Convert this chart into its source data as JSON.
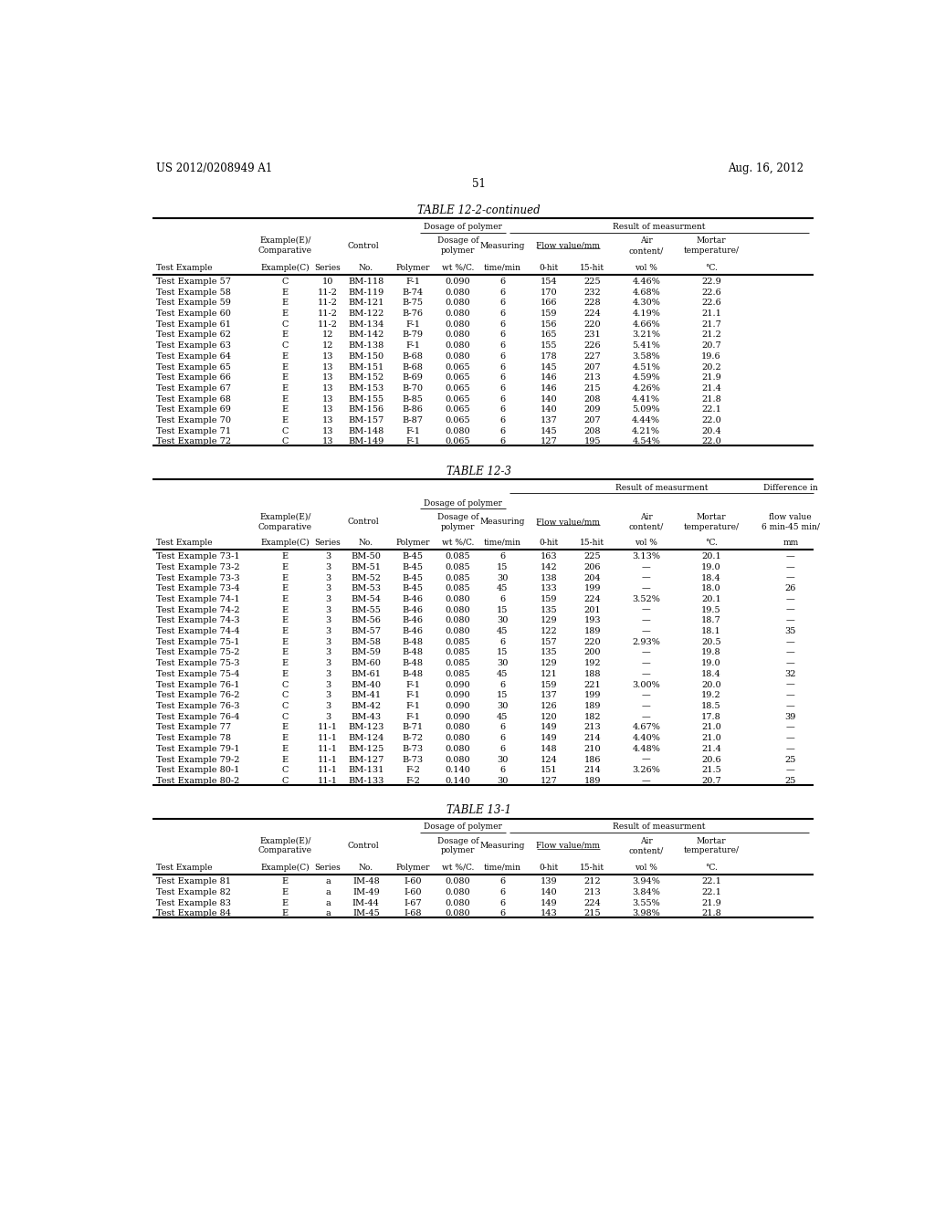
{
  "patent_number": "US 2012/0208949 A1",
  "patent_date": "Aug. 16, 2012",
  "page_number": "51",
  "table1_title": "TABLE 12-2-continued",
  "table1_data": [
    [
      "Test Example 57",
      "C",
      "10",
      "BM-118",
      "F-1",
      "0.090",
      "6",
      "154",
      "225",
      "4.46%",
      "22.9"
    ],
    [
      "Test Example 58",
      "E",
      "11-2",
      "BM-119",
      "B-74",
      "0.080",
      "6",
      "170",
      "232",
      "4.68%",
      "22.6"
    ],
    [
      "Test Example 59",
      "E",
      "11-2",
      "BM-121",
      "B-75",
      "0.080",
      "6",
      "166",
      "228",
      "4.30%",
      "22.6"
    ],
    [
      "Test Example 60",
      "E",
      "11-2",
      "BM-122",
      "B-76",
      "0.080",
      "6",
      "159",
      "224",
      "4.19%",
      "21.1"
    ],
    [
      "Test Example 61",
      "C",
      "11-2",
      "BM-134",
      "F-1",
      "0.080",
      "6",
      "156",
      "220",
      "4.66%",
      "21.7"
    ],
    [
      "Test Example 62",
      "E",
      "12",
      "BM-142",
      "B-79",
      "0.080",
      "6",
      "165",
      "231",
      "3.21%",
      "21.2"
    ],
    [
      "Test Example 63",
      "C",
      "12",
      "BM-138",
      "F-1",
      "0.080",
      "6",
      "155",
      "226",
      "5.41%",
      "20.7"
    ],
    [
      "Test Example 64",
      "E",
      "13",
      "BM-150",
      "B-68",
      "0.080",
      "6",
      "178",
      "227",
      "3.58%",
      "19.6"
    ],
    [
      "Test Example 65",
      "E",
      "13",
      "BM-151",
      "B-68",
      "0.065",
      "6",
      "145",
      "207",
      "4.51%",
      "20.2"
    ],
    [
      "Test Example 66",
      "E",
      "13",
      "BM-152",
      "B-69",
      "0.065",
      "6",
      "146",
      "213",
      "4.59%",
      "21.9"
    ],
    [
      "Test Example 67",
      "E",
      "13",
      "BM-153",
      "B-70",
      "0.065",
      "6",
      "146",
      "215",
      "4.26%",
      "21.4"
    ],
    [
      "Test Example 68",
      "E",
      "13",
      "BM-155",
      "B-85",
      "0.065",
      "6",
      "140",
      "208",
      "4.41%",
      "21.8"
    ],
    [
      "Test Example 69",
      "E",
      "13",
      "BM-156",
      "B-86",
      "0.065",
      "6",
      "140",
      "209",
      "5.09%",
      "22.1"
    ],
    [
      "Test Example 70",
      "E",
      "13",
      "BM-157",
      "B-87",
      "0.065",
      "6",
      "137",
      "207",
      "4.44%",
      "22.0"
    ],
    [
      "Test Example 71",
      "C",
      "13",
      "BM-148",
      "F-1",
      "0.080",
      "6",
      "145",
      "208",
      "4.21%",
      "20.4"
    ],
    [
      "Test Example 72",
      "C",
      "13",
      "BM-149",
      "F-1",
      "0.065",
      "6",
      "127",
      "195",
      "4.54%",
      "22.0"
    ]
  ],
  "table2_title": "TABLE 12-3",
  "table2_data": [
    [
      "Test Example 73-1",
      "E",
      "3",
      "BM-50",
      "B-45",
      "0.085",
      "6",
      "163",
      "225",
      "3.13%",
      "20.1",
      "—"
    ],
    [
      "Test Example 73-2",
      "E",
      "3",
      "BM-51",
      "B-45",
      "0.085",
      "15",
      "142",
      "206",
      "—",
      "19.0",
      "—"
    ],
    [
      "Test Example 73-3",
      "E",
      "3",
      "BM-52",
      "B-45",
      "0.085",
      "30",
      "138",
      "204",
      "—",
      "18.4",
      "—"
    ],
    [
      "Test Example 73-4",
      "E",
      "3",
      "BM-53",
      "B-45",
      "0.085",
      "45",
      "133",
      "199",
      "—",
      "18.0",
      "26"
    ],
    [
      "Test Example 74-1",
      "E",
      "3",
      "BM-54",
      "B-46",
      "0.080",
      "6",
      "159",
      "224",
      "3.52%",
      "20.1",
      "—"
    ],
    [
      "Test Example 74-2",
      "E",
      "3",
      "BM-55",
      "B-46",
      "0.080",
      "15",
      "135",
      "201",
      "—",
      "19.5",
      "—"
    ],
    [
      "Test Example 74-3",
      "E",
      "3",
      "BM-56",
      "B-46",
      "0.080",
      "30",
      "129",
      "193",
      "—",
      "18.7",
      "—"
    ],
    [
      "Test Example 74-4",
      "E",
      "3",
      "BM-57",
      "B-46",
      "0.080",
      "45",
      "122",
      "189",
      "—",
      "18.1",
      "35"
    ],
    [
      "Test Example 75-1",
      "E",
      "3",
      "BM-58",
      "B-48",
      "0.085",
      "6",
      "157",
      "220",
      "2.93%",
      "20.5",
      "—"
    ],
    [
      "Test Example 75-2",
      "E",
      "3",
      "BM-59",
      "B-48",
      "0.085",
      "15",
      "135",
      "200",
      "—",
      "19.8",
      "—"
    ],
    [
      "Test Example 75-3",
      "E",
      "3",
      "BM-60",
      "B-48",
      "0.085",
      "30",
      "129",
      "192",
      "—",
      "19.0",
      "—"
    ],
    [
      "Test Example 75-4",
      "E",
      "3",
      "BM-61",
      "B-48",
      "0.085",
      "45",
      "121",
      "188",
      "—",
      "18.4",
      "32"
    ],
    [
      "Test Example 76-1",
      "C",
      "3",
      "BM-40",
      "F-1",
      "0.090",
      "6",
      "159",
      "221",
      "3.00%",
      "20.0",
      "—"
    ],
    [
      "Test Example 76-2",
      "C",
      "3",
      "BM-41",
      "F-1",
      "0.090",
      "15",
      "137",
      "199",
      "—",
      "19.2",
      "—"
    ],
    [
      "Test Example 76-3",
      "C",
      "3",
      "BM-42",
      "F-1",
      "0.090",
      "30",
      "126",
      "189",
      "—",
      "18.5",
      "—"
    ],
    [
      "Test Example 76-4",
      "C",
      "3",
      "BM-43",
      "F-1",
      "0.090",
      "45",
      "120",
      "182",
      "—",
      "17.8",
      "39"
    ],
    [
      "Test Example 77",
      "E",
      "11-1",
      "BM-123",
      "B-71",
      "0.080",
      "6",
      "149",
      "213",
      "4.67%",
      "21.0",
      "—"
    ],
    [
      "Test Example 78",
      "E",
      "11-1",
      "BM-124",
      "B-72",
      "0.080",
      "6",
      "149",
      "214",
      "4.40%",
      "21.0",
      "—"
    ],
    [
      "Test Example 79-1",
      "E",
      "11-1",
      "BM-125",
      "B-73",
      "0.080",
      "6",
      "148",
      "210",
      "4.48%",
      "21.4",
      "—"
    ],
    [
      "Test Example 79-2",
      "E",
      "11-1",
      "BM-127",
      "B-73",
      "0.080",
      "30",
      "124",
      "186",
      "—",
      "20.6",
      "25"
    ],
    [
      "Test Example 80-1",
      "C",
      "11-1",
      "BM-131",
      "F-2",
      "0.140",
      "6",
      "151",
      "214",
      "3.26%",
      "21.5",
      "—"
    ],
    [
      "Test Example 80-2",
      "C",
      "11-1",
      "BM-133",
      "F-2",
      "0.140",
      "30",
      "127",
      "189",
      "—",
      "20.7",
      "25"
    ]
  ],
  "table3_title": "TABLE 13-1",
  "table3_data": [
    [
      "Test Example 81",
      "E",
      "a",
      "IM-48",
      "I-60",
      "0.080",
      "6",
      "139",
      "212",
      "3.94%",
      "22.1"
    ],
    [
      "Test Example 82",
      "E",
      "a",
      "IM-49",
      "I-60",
      "0.080",
      "6",
      "140",
      "213",
      "3.84%",
      "22.1"
    ],
    [
      "Test Example 83",
      "E",
      "a",
      "IM-44",
      "I-67",
      "0.080",
      "6",
      "149",
      "224",
      "3.55%",
      "21.9"
    ],
    [
      "Test Example 84",
      "E",
      "a",
      "IM-45",
      "I-68",
      "0.080",
      "6",
      "143",
      "215",
      "3.98%",
      "21.8"
    ]
  ]
}
